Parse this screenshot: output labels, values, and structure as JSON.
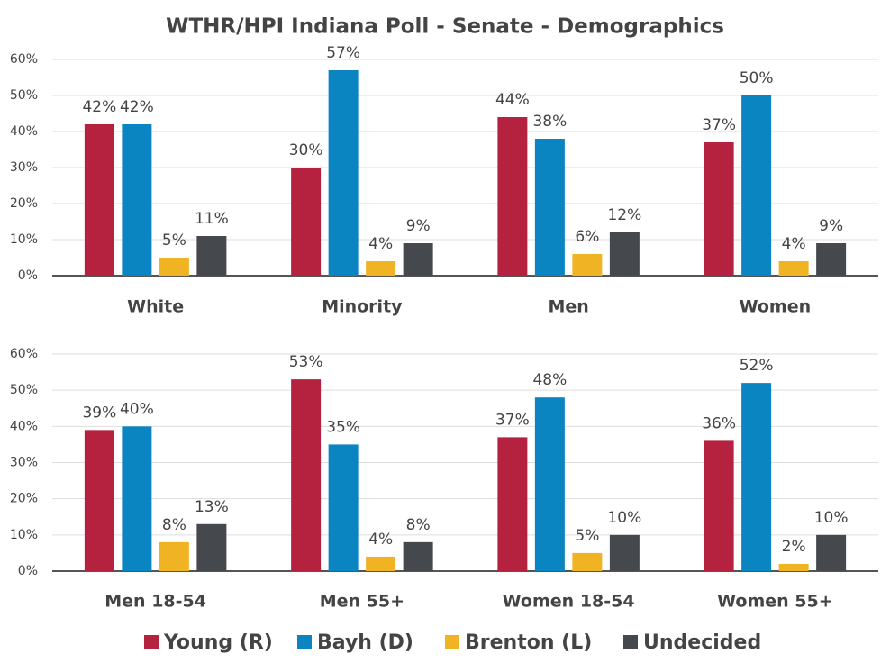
{
  "chart_data": {
    "type": "bar",
    "title": "WTHR/HPI Indiana Poll - Senate - Demographics",
    "categories": [
      "White",
      "Minority",
      "Men",
      "Women",
      "Men 18-54",
      "Men 55+",
      "Women 18-54",
      "Women 55+"
    ],
    "series": [
      {
        "name": "Young (R)",
        "color": "#b5223f",
        "values": [
          42,
          30,
          44,
          37,
          39,
          53,
          37,
          36
        ],
        "value_labels": [
          "42%",
          "30%",
          "44%",
          "37%",
          "39%",
          "53%",
          "37%",
          "36%"
        ]
      },
      {
        "name": "Bayh (D)",
        "color": "#0a85c2",
        "values": [
          42,
          57,
          38,
          50,
          40,
          35,
          48,
          52
        ],
        "value_labels": [
          "42%",
          "57%",
          "38%",
          "50%",
          "40%",
          "35%",
          "48%",
          "52%"
        ]
      },
      {
        "name": "Brenton (L)",
        "color": "#f0b323",
        "values": [
          5,
          4,
          6,
          4,
          8,
          4,
          5,
          2
        ],
        "value_labels": [
          "5%",
          "4%",
          "6%",
          "4%",
          "8%",
          "4%",
          "5%",
          "2%"
        ]
      },
      {
        "name": "Undecided",
        "color": "#45484c",
        "values": [
          11,
          9,
          12,
          9,
          13,
          8,
          10,
          10
        ],
        "value_labels": [
          "11%",
          "9%",
          "12%",
          "9%",
          "13%",
          "8%",
          "10%",
          "10%"
        ]
      }
    ],
    "ylim": [
      0,
      60
    ],
    "yticks": [
      {
        "value": 0,
        "label": "0%"
      },
      {
        "value": 10,
        "label": "10%"
      },
      {
        "value": 20,
        "label": "20%"
      },
      {
        "value": 30,
        "label": "30%"
      },
      {
        "value": 40,
        "label": "40%"
      },
      {
        "value": 50,
        "label": "50%"
      },
      {
        "value": 60,
        "label": "60%"
      }
    ],
    "grid": true
  }
}
